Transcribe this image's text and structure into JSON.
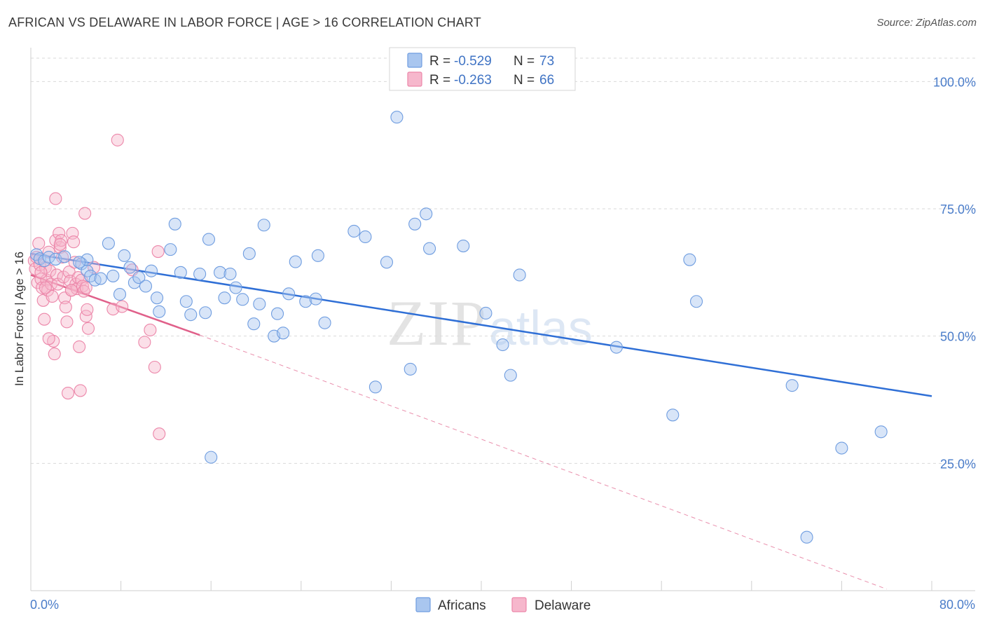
{
  "header": {
    "title": "AFRICAN VS DELAWARE IN LABOR FORCE | AGE > 16 CORRELATION CHART",
    "source": "Source: ZipAtlas.com"
  },
  "watermark": {
    "zip": "ZIP",
    "atlas": "atlas"
  },
  "legend": {
    "items": [
      {
        "r_label": "R =",
        "r_value": "-0.529",
        "n_label": "N =",
        "n_value": "73"
      },
      {
        "r_label": "R =",
        "r_value": "-0.263",
        "n_label": "N =",
        "n_value": "66"
      }
    ]
  },
  "bottom_legend": {
    "africans": "Africans",
    "delaware": "Delaware"
  },
  "colors": {
    "africans_fill": "#a9c6ef",
    "africans_stroke": "#6f9de0",
    "africans_line": "#2f6fd6",
    "delaware_fill": "#f6b7cc",
    "delaware_stroke": "#ec86a9",
    "delaware_line": "#e0608a",
    "grid": "#d9d9d9",
    "tick_label": "#4a7cc9"
  },
  "chart_data": {
    "type": "scatter",
    "title": "AFRICAN VS DELAWARE IN LABOR FORCE | AGE > 16 CORRELATION CHART",
    "xlabel": "",
    "ylabel": "In Labor Force | Age > 16",
    "xlim": [
      0,
      80
    ],
    "ylim": [
      0,
      105
    ],
    "x_tick_labels": [
      "0.0%",
      "80.0%"
    ],
    "y_ticks": [
      {
        "value": 100,
        "label": "100.0%"
      },
      {
        "value": 75,
        "label": "75.0%"
      },
      {
        "value": 50,
        "label": "50.0%"
      },
      {
        "value": 25,
        "label": "25.0%"
      }
    ],
    "grid": true,
    "series": [
      {
        "name": "Africans",
        "r": -0.529,
        "n": 73,
        "trend": {
          "x0": 0,
          "y0": 66.2,
          "x1": 80,
          "y1": 38.2
        },
        "points": [
          [
            0.5,
            66
          ],
          [
            0.8,
            65.2
          ],
          [
            1.2,
            64.8
          ],
          [
            1.6,
            65.5
          ],
          [
            2.2,
            65.1
          ],
          [
            3.0,
            65.6
          ],
          [
            4.5,
            64.2
          ],
          [
            5.0,
            65.0
          ],
          [
            4.3,
            64.5
          ],
          [
            5.0,
            62.8
          ],
          [
            5.3,
            61.8
          ],
          [
            5.7,
            61.0
          ],
          [
            6.2,
            61.3
          ],
          [
            6.9,
            68.2
          ],
          [
            7.3,
            61.8
          ],
          [
            7.9,
            58.2
          ],
          [
            8.3,
            65.8
          ],
          [
            8.8,
            63.5
          ],
          [
            9.2,
            60.5
          ],
          [
            9.6,
            61.5
          ],
          [
            10.2,
            59.8
          ],
          [
            10.7,
            62.8
          ],
          [
            11.2,
            57.5
          ],
          [
            11.4,
            54.8
          ],
          [
            12.4,
            67.0
          ],
          [
            12.8,
            72.0
          ],
          [
            13.3,
            62.5
          ],
          [
            13.8,
            56.8
          ],
          [
            14.2,
            54.2
          ],
          [
            15.0,
            62.2
          ],
          [
            15.5,
            54.6
          ],
          [
            15.8,
            69.0
          ],
          [
            16.0,
            26.2
          ],
          [
            16.8,
            62.5
          ],
          [
            17.2,
            57.5
          ],
          [
            17.7,
            62.2
          ],
          [
            18.2,
            59.5
          ],
          [
            18.8,
            57.2
          ],
          [
            19.4,
            66.2
          ],
          [
            19.8,
            52.4
          ],
          [
            20.3,
            56.3
          ],
          [
            20.7,
            71.8
          ],
          [
            21.6,
            50.0
          ],
          [
            21.9,
            54.4
          ],
          [
            22.4,
            50.6
          ],
          [
            22.9,
            58.3
          ],
          [
            23.5,
            64.6
          ],
          [
            24.4,
            56.8
          ],
          [
            25.3,
            57.3
          ],
          [
            25.5,
            65.8
          ],
          [
            26.1,
            52.6
          ],
          [
            28.7,
            70.6
          ],
          [
            29.7,
            69.5
          ],
          [
            30.6,
            40.0
          ],
          [
            31.6,
            64.5
          ],
          [
            32.5,
            93.0
          ],
          [
            33.7,
            43.5
          ],
          [
            34.1,
            72.0
          ],
          [
            35.1,
            74.0
          ],
          [
            35.4,
            67.2
          ],
          [
            38.4,
            67.7
          ],
          [
            40.4,
            54.5
          ],
          [
            41.9,
            48.3
          ],
          [
            42.6,
            42.3
          ],
          [
            43.4,
            62.0
          ],
          [
            52.0,
            47.8
          ],
          [
            57.0,
            34.5
          ],
          [
            58.5,
            65.0
          ],
          [
            59.1,
            56.8
          ],
          [
            67.6,
            40.3
          ],
          [
            72.0,
            28.0
          ],
          [
            75.5,
            31.2
          ],
          [
            68.9,
            10.5
          ]
        ]
      },
      {
        "name": "Delaware",
        "r": -0.263,
        "n": 66,
        "trend": {
          "x0": 0,
          "y0": 62.0,
          "x1": 15,
          "y1": 50.2
        },
        "trend_extension": {
          "x0": 15,
          "y0": 50.2,
          "x1": 76,
          "y1": 0.3
        },
        "points": [
          [
            0.3,
            64.8
          ],
          [
            0.4,
            63.2
          ],
          [
            0.5,
            65.5
          ],
          [
            0.6,
            60.5
          ],
          [
            0.7,
            68.2
          ],
          [
            0.8,
            64.0
          ],
          [
            0.9,
            61.2
          ],
          [
            1.0,
            59.5
          ],
          [
            1.1,
            57.0
          ],
          [
            1.2,
            53.3
          ],
          [
            1.3,
            63.5
          ],
          [
            1.4,
            61.0
          ],
          [
            1.5,
            59.0
          ],
          [
            1.6,
            66.5
          ],
          [
            1.7,
            62.8
          ],
          [
            1.8,
            60.2
          ],
          [
            1.9,
            57.8
          ],
          [
            2.0,
            49.0
          ],
          [
            2.1,
            46.5
          ],
          [
            2.2,
            68.8
          ],
          [
            2.3,
            62.0
          ],
          [
            2.4,
            60.2
          ],
          [
            2.5,
            70.2
          ],
          [
            2.6,
            67.4
          ],
          [
            2.7,
            68.8
          ],
          [
            2.8,
            65.5
          ],
          [
            2.9,
            61.6
          ],
          [
            3.0,
            57.5
          ],
          [
            3.1,
            55.7
          ],
          [
            3.2,
            52.8
          ],
          [
            3.3,
            38.8
          ],
          [
            3.4,
            62.6
          ],
          [
            3.5,
            60.8
          ],
          [
            3.6,
            59.0
          ],
          [
            3.7,
            70.2
          ],
          [
            3.8,
            68.5
          ],
          [
            3.9,
            64.5
          ],
          [
            4.0,
            60.2
          ],
          [
            4.1,
            59.3
          ],
          [
            4.2,
            61.5
          ],
          [
            4.3,
            47.9
          ],
          [
            4.4,
            39.3
          ],
          [
            4.5,
            61.0
          ],
          [
            4.6,
            59.8
          ],
          [
            4.7,
            58.8
          ],
          [
            4.8,
            74.1
          ],
          [
            4.9,
            53.9
          ],
          [
            5.0,
            55.2
          ],
          [
            5.1,
            51.5
          ],
          [
            2.2,
            77.0
          ],
          [
            1.6,
            49.5
          ],
          [
            2.6,
            68.0
          ],
          [
            3.6,
            59.0
          ],
          [
            0.9,
            62.5
          ],
          [
            1.3,
            59.5
          ],
          [
            4.9,
            59.5
          ],
          [
            5.6,
            63.5
          ],
          [
            7.3,
            55.3
          ],
          [
            7.7,
            88.5
          ],
          [
            8.1,
            55.8
          ],
          [
            9.0,
            63.0
          ],
          [
            10.1,
            48.8
          ],
          [
            10.6,
            51.2
          ],
          [
            11.0,
            43.9
          ],
          [
            11.3,
            66.6
          ],
          [
            11.4,
            30.8
          ]
        ]
      }
    ]
  }
}
